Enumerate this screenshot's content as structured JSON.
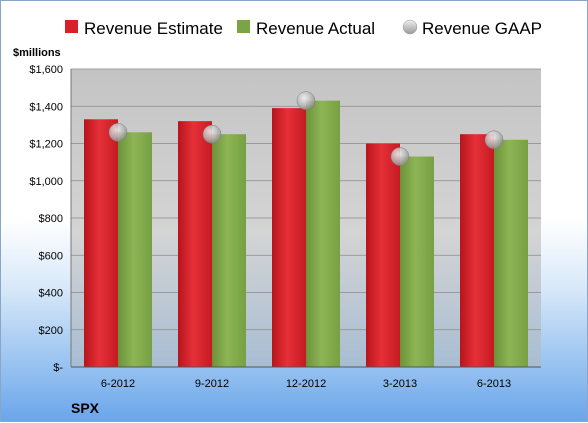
{
  "chart_data": {
    "type": "bar",
    "ylabel": "$millions",
    "company": "SPX",
    "categories": [
      "6-2012",
      "9-2012",
      "12-2012",
      "3-2013",
      "6-2013"
    ],
    "series": [
      {
        "name": "Revenue Estimate",
        "type": "bar",
        "color": "#d82028",
        "values": [
          1330,
          1320,
          1390,
          1200,
          1250
        ]
      },
      {
        "name": "Revenue Actual",
        "type": "bar",
        "color": "#7da347",
        "values": [
          1260,
          1250,
          1430,
          1130,
          1220
        ]
      },
      {
        "name": "Revenue GAAP",
        "type": "scatter",
        "color": "#b8b8b8",
        "values": [
          1260,
          1250,
          1430,
          1130,
          1220
        ]
      }
    ],
    "ylim": [
      0,
      1600
    ],
    "yticks": [
      0,
      200,
      400,
      600,
      800,
      1000,
      1200,
      1400,
      1600
    ],
    "ytick_labels": [
      "$-",
      "$200",
      "$400",
      "$600",
      "$800",
      "$1,000",
      "$1,200",
      "$1,400",
      "$1,600"
    ],
    "grid": true,
    "legend_position": "top"
  }
}
